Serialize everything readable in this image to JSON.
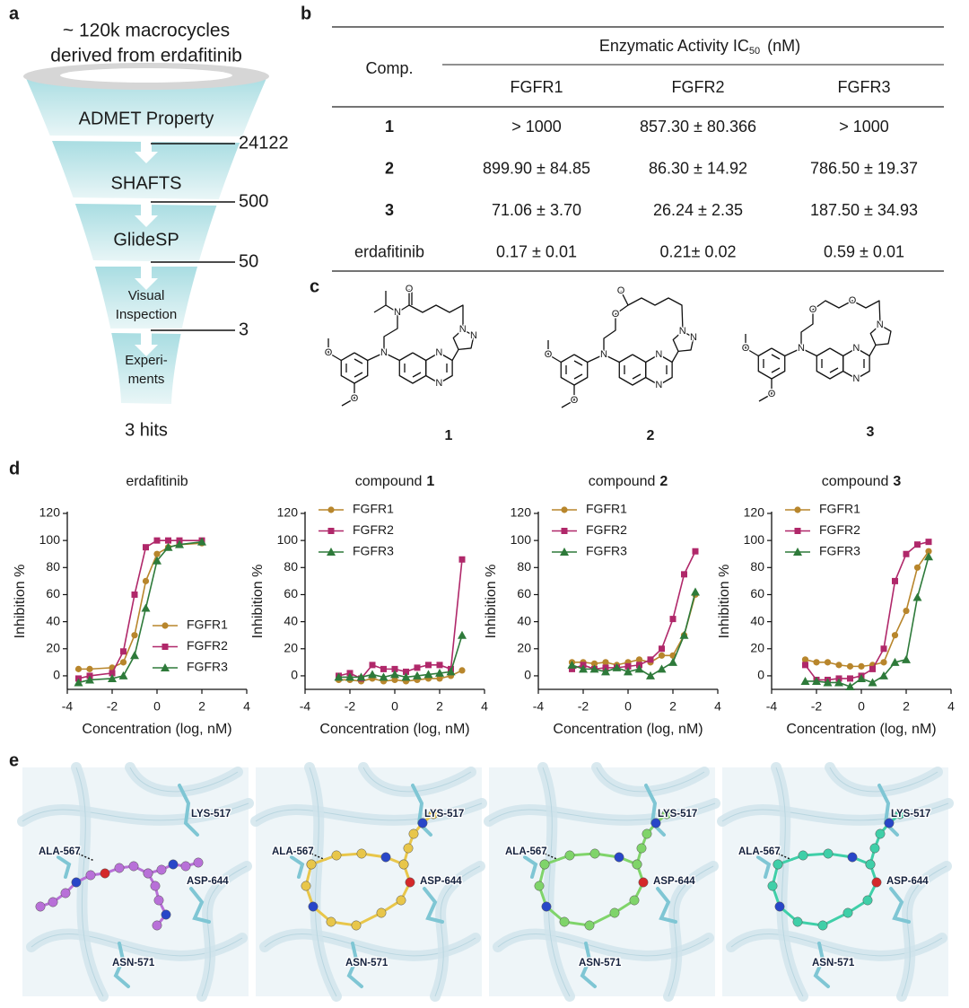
{
  "panel_labels": [
    "a",
    "b",
    "c",
    "d",
    "e"
  ],
  "funnel": {
    "title": [
      "~ 120k macrocycles",
      "derived from erdafitinib"
    ],
    "stages": [
      [
        "ADMET Property"
      ],
      [
        "SHAFTS"
      ],
      [
        "GlideSP"
      ],
      [
        "Visual",
        "Inspection"
      ],
      [
        "Experi-",
        "ments"
      ]
    ],
    "counts": [
      24122,
      500,
      50,
      3
    ],
    "result": "3 hits"
  },
  "table": {
    "row_header": "Comp.",
    "group_header": {
      "text": "Enzymatic  Activity  IC",
      "subscript": "50",
      "unit": "(nM)"
    },
    "columns": [
      "FGFR1",
      "FGFR2",
      "FGFR3"
    ],
    "rows": [
      [
        "1",
        "> 1000",
        "857.30 ± 80.366",
        "> 1000"
      ],
      [
        "2",
        "899.90 ± 84.85",
        "86.30 ± 14.92",
        "786.50 ± 19.37"
      ],
      [
        "3",
        "71.06 ± 3.70",
        "26.24 ± 2.35",
        "187.50 ± 34.93"
      ],
      [
        "erdafitinib",
        "0.17 ± 0.01",
        "0.21± 0.02",
        "0.59 ± 0.01"
      ]
    ]
  },
  "structures": [
    {
      "label": "1",
      "atoms": [
        "O",
        "O",
        "N",
        "N",
        "N",
        "N",
        "N",
        "N",
        "O"
      ]
    },
    {
      "label": "2",
      "atoms": [
        "O",
        "O",
        "N",
        "N",
        "N",
        "N",
        "N",
        "O",
        "O"
      ]
    },
    {
      "label": "3",
      "atoms": [
        "O",
        "O",
        "N",
        "N",
        "N",
        "N",
        "O",
        "O"
      ]
    }
  ],
  "chart_data": [
    {
      "type": "line",
      "title": {
        "text": "erdafitinib"
      },
      "xlabel": "Concentration (log, nM)",
      "ylabel": "Inhibition %",
      "xlim": [
        -4,
        4
      ],
      "xticks": [
        -4,
        -2,
        0,
        2,
        4
      ],
      "ylim": [
        -10,
        120
      ],
      "yticks": [
        0,
        20,
        40,
        60,
        80,
        100,
        120
      ],
      "legend": "lower right",
      "x": [
        -3.5,
        -3,
        -2,
        -1.5,
        -1,
        -0.5,
        0,
        0.5,
        1,
        2
      ],
      "series": [
        {
          "name": "FGFR1",
          "color": "#b8862c",
          "marker": "circle",
          "values": [
            5,
            5,
            6,
            10,
            30,
            70,
            90,
            95,
            97,
            98
          ]
        },
        {
          "name": "FGFR2",
          "color": "#b0286a",
          "marker": "square",
          "values": [
            -2,
            0,
            2,
            18,
            60,
            95,
            100,
            100,
            100,
            100
          ]
        },
        {
          "name": "FGFR3",
          "color": "#2e7a3a",
          "marker": "triangle",
          "values": [
            -5,
            -3,
            -2,
            0,
            15,
            50,
            85,
            95,
            97,
            99
          ]
        }
      ]
    },
    {
      "type": "line",
      "title": {
        "text": "compound",
        "number": "1"
      },
      "xlabel": "Concentration (log, nM)",
      "ylabel": "Inhibition %",
      "xlim": [
        -4,
        4
      ],
      "xticks": [
        -4,
        -2,
        0,
        2,
        4
      ],
      "ylim": [
        -10,
        120
      ],
      "yticks": [
        0,
        20,
        40,
        60,
        80,
        100,
        120
      ],
      "legend": "upper left",
      "x": [
        -2.5,
        -2,
        -1.5,
        -1,
        -0.5,
        0,
        0.5,
        1,
        1.5,
        2,
        2.5,
        3
      ],
      "series": [
        {
          "name": "FGFR1",
          "color": "#b8862c",
          "marker": "circle",
          "values": [
            -3,
            -3,
            -4,
            -2,
            -4,
            -3,
            -4,
            -3,
            -2,
            -2,
            0,
            4
          ]
        },
        {
          "name": "FGFR2",
          "color": "#b0286a",
          "marker": "square",
          "values": [
            0,
            2,
            -2,
            8,
            5,
            5,
            3,
            6,
            8,
            8,
            5,
            86
          ]
        },
        {
          "name": "FGFR3",
          "color": "#2e7a3a",
          "marker": "triangle",
          "values": [
            -1,
            -1,
            -1,
            1,
            -1,
            1,
            -1,
            0,
            1,
            2,
            3,
            30
          ]
        }
      ]
    },
    {
      "type": "line",
      "title": {
        "text": "compound",
        "number": "2"
      },
      "xlabel": "Concentration (log, nM)",
      "ylabel": "Inhibition %",
      "xlim": [
        -4,
        4
      ],
      "xticks": [
        -4,
        -2,
        0,
        2,
        4
      ],
      "ylim": [
        -10,
        120
      ],
      "yticks": [
        0,
        20,
        40,
        60,
        80,
        100,
        120
      ],
      "legend": "upper left",
      "x": [
        -2.5,
        -2,
        -1.5,
        -1,
        -0.5,
        0,
        0.5,
        1,
        1.5,
        2,
        2.5,
        3
      ],
      "series": [
        {
          "name": "FGFR1",
          "color": "#b8862c",
          "marker": "circle",
          "values": [
            10,
            10,
            9,
            10,
            8,
            10,
            12,
            10,
            15,
            15,
            30,
            60
          ]
        },
        {
          "name": "FGFR2",
          "color": "#b0286a",
          "marker": "square",
          "values": [
            5,
            8,
            5,
            6,
            6,
            7,
            8,
            12,
            20,
            42,
            75,
            92
          ]
        },
        {
          "name": "FGFR3",
          "color": "#2e7a3a",
          "marker": "triangle",
          "values": [
            8,
            5,
            5,
            3,
            6,
            3,
            5,
            0,
            5,
            10,
            30,
            62
          ]
        }
      ]
    },
    {
      "type": "line",
      "title": {
        "text": "compound",
        "number": "3"
      },
      "xlabel": "Concentration (log, nM)",
      "ylabel": "Inhibition %",
      "xlim": [
        -4,
        4
      ],
      "xticks": [
        -4,
        -2,
        0,
        2,
        4
      ],
      "ylim": [
        -10,
        120
      ],
      "yticks": [
        0,
        20,
        40,
        60,
        80,
        100,
        120
      ],
      "legend": "upper left",
      "x": [
        -2.5,
        -2,
        -1.5,
        -1,
        -0.5,
        0,
        0.5,
        1,
        1.5,
        2,
        2.5,
        3
      ],
      "series": [
        {
          "name": "FGFR1",
          "color": "#b8862c",
          "marker": "circle",
          "values": [
            12,
            10,
            10,
            8,
            7,
            7,
            8,
            10,
            30,
            48,
            80,
            92
          ]
        },
        {
          "name": "FGFR2",
          "color": "#b0286a",
          "marker": "square",
          "values": [
            8,
            -3,
            -3,
            -2,
            -2,
            0,
            5,
            20,
            70,
            90,
            97,
            99
          ]
        },
        {
          "name": "FGFR3",
          "color": "#2e7a3a",
          "marker": "triangle",
          "values": [
            -4,
            -4,
            -5,
            -5,
            -8,
            -2,
            -5,
            0,
            10,
            12,
            58,
            88
          ]
        }
      ]
    }
  ],
  "docking": [
    {
      "ligand_color": "#b870d8",
      "residues": [
        "LYS-517",
        "ALA-567",
        "ASP-644",
        "ASN-571"
      ]
    },
    {
      "ligand_color": "#e8c64a",
      "residues": [
        "LYS-517",
        "ALA-567",
        "ASP-644",
        "ASN-571"
      ]
    },
    {
      "ligand_color": "#7fd46a",
      "residues": [
        "LYS-517",
        "ALA-567",
        "ASP-644",
        "ASN-571"
      ]
    },
    {
      "ligand_color": "#3fcfa8",
      "residues": [
        "LYS-517",
        "ALA-567",
        "ASP-644",
        "ASN-571"
      ]
    }
  ]
}
